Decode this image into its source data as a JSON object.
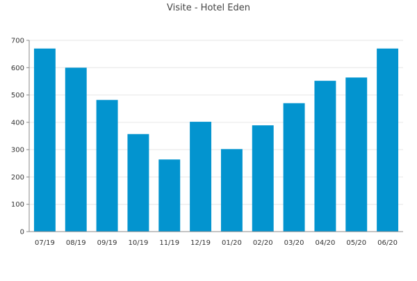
{
  "chart_data": {
    "type": "bar",
    "title": "Visite - Hotel Eden",
    "xlabel": "",
    "ylabel": "",
    "categories": [
      "07/19",
      "08/19",
      "09/19",
      "10/19",
      "11/19",
      "12/19",
      "01/20",
      "02/20",
      "03/20",
      "04/20",
      "05/20",
      "06/20"
    ],
    "values": [
      670,
      600,
      482,
      357,
      264,
      402,
      302,
      389,
      470,
      552,
      564,
      670
    ],
    "ylim": [
      0,
      700
    ],
    "yticks": [
      0,
      100,
      200,
      300,
      400,
      500,
      600,
      700
    ],
    "grid": true,
    "bar_color": "#0394cf"
  }
}
